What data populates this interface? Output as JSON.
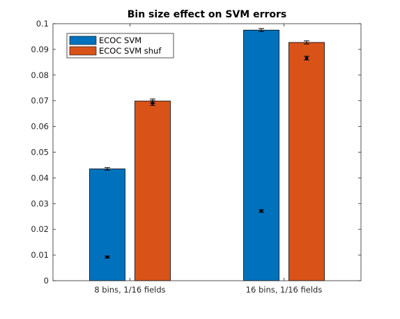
{
  "chart_data": {
    "type": "bar",
    "title": "Bin size effect on SVM errors",
    "xlabel": "",
    "ylabel": "",
    "categories": [
      "8 bins, 1/16 fields",
      "16 bins, 1/16 fields"
    ],
    "ylim": [
      0,
      0.1
    ],
    "yticks": [
      0,
      0.01,
      0.02,
      0.03,
      0.04,
      0.05,
      0.06,
      0.07,
      0.08,
      0.09,
      0.1
    ],
    "ytick_labels": [
      "0",
      "0.01",
      "0.02",
      "0.03",
      "0.04",
      "0.05",
      "0.06",
      "0.07",
      "0.08",
      "0.09",
      "0.1"
    ],
    "grid": false,
    "legend_position": "top-left",
    "series": [
      {
        "name": "ECOC SVM",
        "color": "#0072BD",
        "values": [
          0.0435,
          0.0975
        ],
        "errors": [
          0.0005,
          0.0006
        ],
        "markers": [
          {
            "value": 0.0092,
            "error": 0.0004
          },
          {
            "value": 0.0271,
            "error": 0.0005
          }
        ]
      },
      {
        "name": "ECOC SVM shuf",
        "color": "#D95319",
        "values": [
          0.0699,
          0.0927
        ],
        "errors": [
          0.0008,
          0.0006
        ],
        "markers": [
          {
            "value": 0.0691,
            "error": 0.0009
          },
          {
            "value": 0.0866,
            "error": 0.0007
          }
        ]
      }
    ]
  }
}
